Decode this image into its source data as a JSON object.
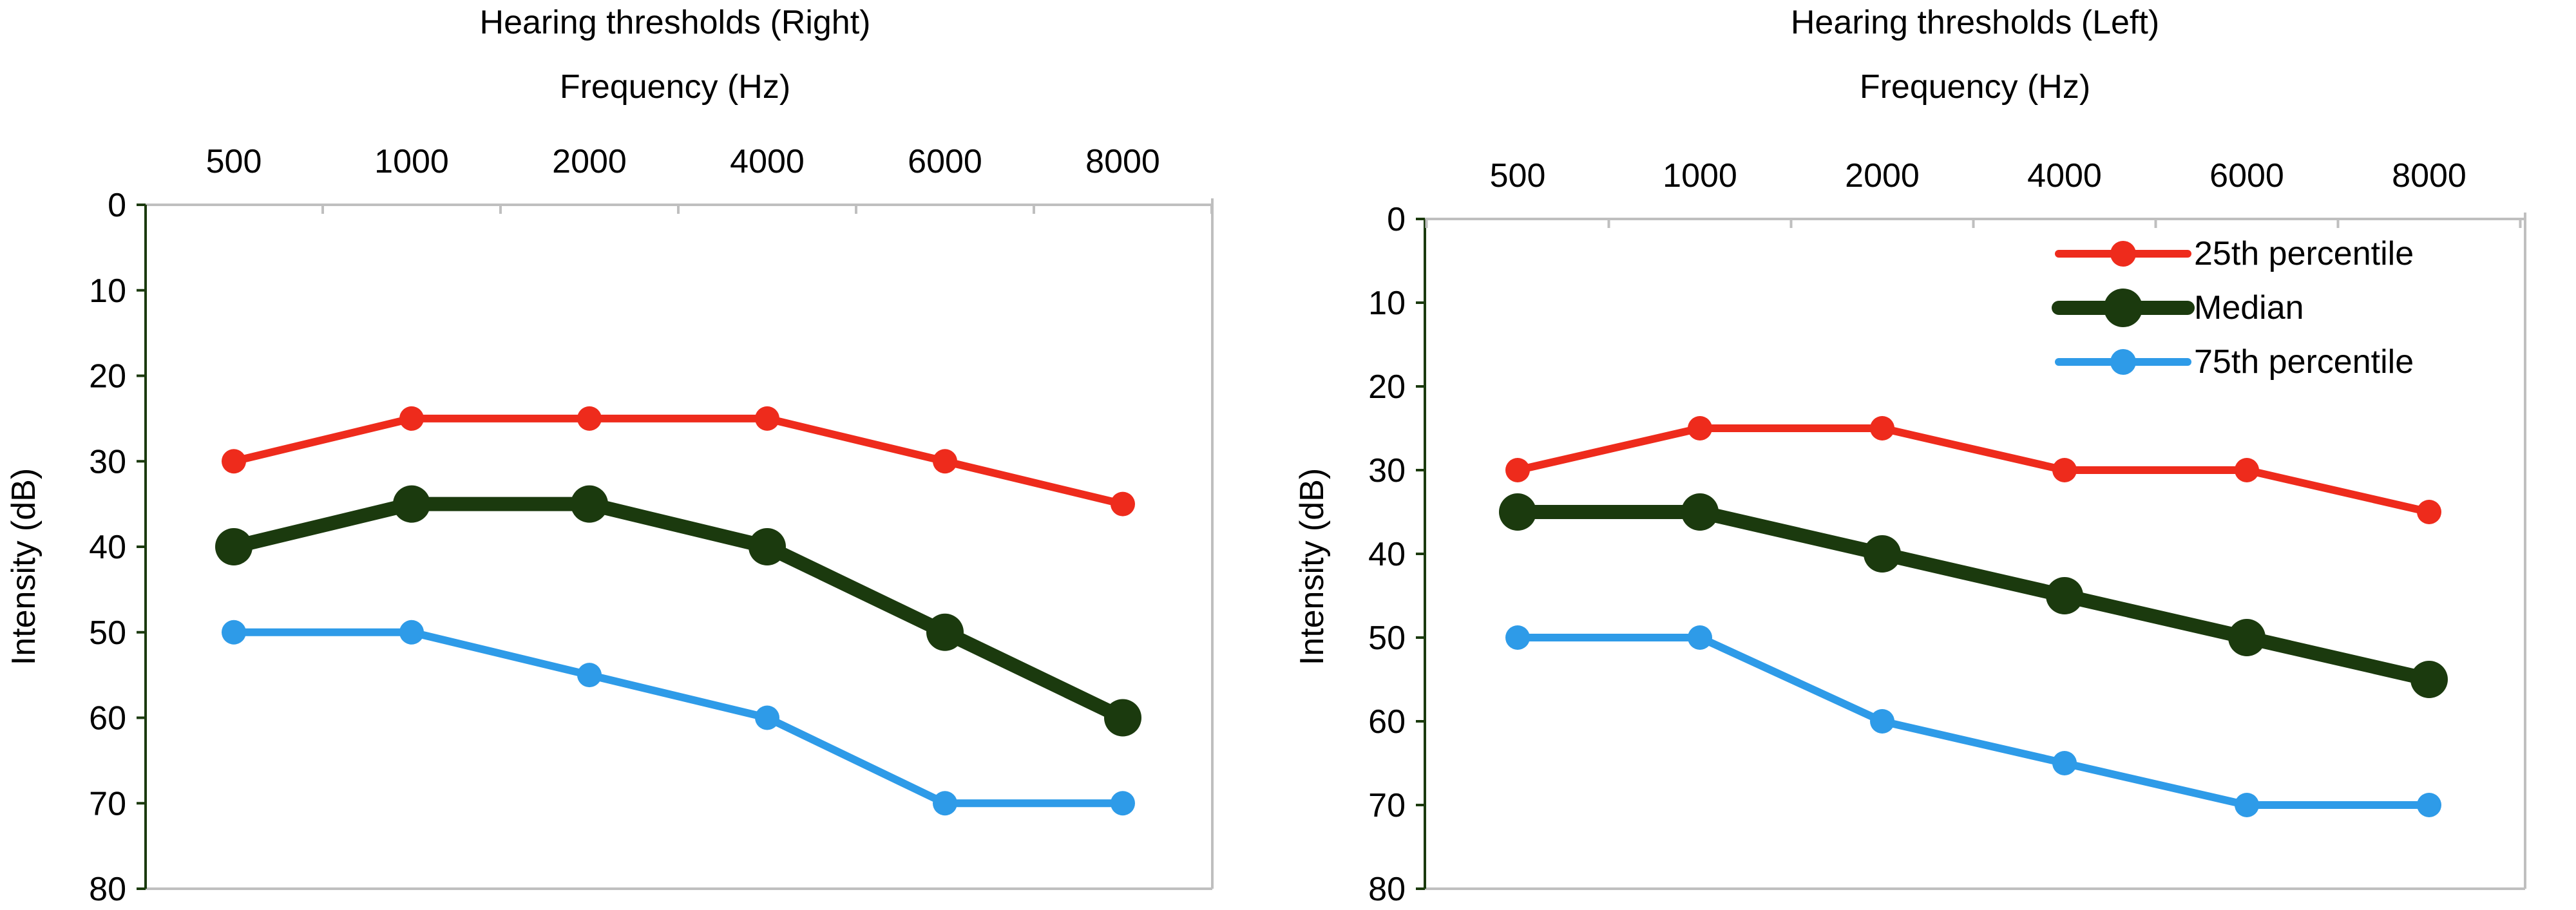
{
  "colors": {
    "p25": "#EE2B1C",
    "median": "#1B3A0E",
    "p75": "#2E9BE8",
    "axis": "#BFBFBF",
    "left_axis": "#1B3A0E"
  },
  "chart_data": [
    {
      "type": "line",
      "title": "Hearing thresholds (Right)",
      "xlabel": "Frequency (Hz)",
      "ylabel": "Intensity (dB)",
      "categories": [
        "500",
        "1000",
        "2000",
        "4000",
        "6000",
        "8000"
      ],
      "y_ticks": [
        "0",
        "10",
        "20",
        "30",
        "40",
        "50",
        "60",
        "70",
        "80"
      ],
      "ylim": [
        0,
        80
      ],
      "y_inverted": true,
      "x_axis_position": "top",
      "legend": null,
      "series": [
        {
          "name": "25th percentile",
          "color_key": "p25",
          "values": [
            30,
            25,
            25,
            25,
            30,
            35
          ]
        },
        {
          "name": "Median",
          "color_key": "median",
          "values": [
            40,
            35,
            35,
            40,
            50,
            60
          ]
        },
        {
          "name": "75th percentile",
          "color_key": "p75",
          "values": [
            50,
            50,
            55,
            60,
            70,
            70
          ]
        }
      ]
    },
    {
      "type": "line",
      "title": "Hearing thresholds (Left)",
      "xlabel": "Frequency (Hz)",
      "ylabel": "Intensity (dB)",
      "categories": [
        "500",
        "1000",
        "2000",
        "4000",
        "6000",
        "8000"
      ],
      "y_ticks": [
        "0",
        "10",
        "20",
        "30",
        "40",
        "50",
        "60",
        "70",
        "80"
      ],
      "ylim": [
        0,
        80
      ],
      "y_inverted": true,
      "x_axis_position": "top",
      "legend": "top-right",
      "series": [
        {
          "name": "25th percentile",
          "color_key": "p25",
          "values": [
            30,
            25,
            25,
            30,
            30,
            35
          ]
        },
        {
          "name": "Median",
          "color_key": "median",
          "values": [
            35,
            35,
            40,
            45,
            50,
            55
          ]
        },
        {
          "name": "75th percentile",
          "color_key": "p75",
          "values": [
            50,
            50,
            60,
            65,
            70,
            70
          ]
        }
      ]
    }
  ]
}
